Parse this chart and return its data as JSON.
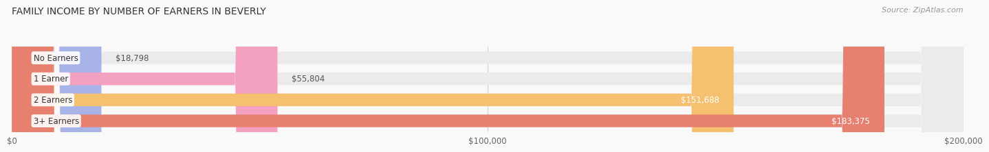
{
  "title": "FAMILY INCOME BY NUMBER OF EARNERS IN BEVERLY",
  "source": "Source: ZipAtlas.com",
  "categories": [
    "No Earners",
    "1 Earner",
    "2 Earners",
    "3+ Earners"
  ],
  "values": [
    18798,
    55804,
    151688,
    183375
  ],
  "bar_colors": [
    "#a8b4e8",
    "#f4a0c0",
    "#f5c070",
    "#e88070"
  ],
  "bar_bg_color": "#ebebeb",
  "label_colors": [
    "#555555",
    "#555555",
    "#ffffff",
    "#ffffff"
  ],
  "xlim": [
    0,
    200000
  ],
  "xticks": [
    0,
    100000,
    200000
  ],
  "xtick_labels": [
    "$0",
    "$100,000",
    "$200,000"
  ],
  "background_color": "#f9f9f9",
  "title_fontsize": 10,
  "source_fontsize": 8,
  "bar_label_fontsize": 8.5,
  "category_fontsize": 8.5,
  "bar_height": 0.6,
  "value_labels": [
    "$18,798",
    "$55,804",
    "$151,688",
    "$183,375"
  ]
}
